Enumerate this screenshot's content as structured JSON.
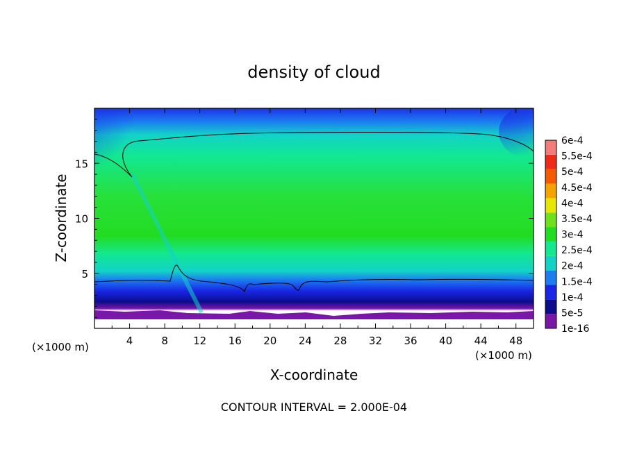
{
  "chart_data": {
    "type": "heatmap",
    "title": "density of cloud",
    "xlabel": "X-coordinate",
    "ylabel": "Z-coordinate",
    "x_unit_left": "(×1000 m)",
    "x_unit_right": "(×1000 m)",
    "footer": "CONTOUR INTERVAL = 2.000E-04",
    "xlim": [
      0,
      50
    ],
    "ylim": [
      0,
      20
    ],
    "x_ticks": [
      "4",
      "8",
      "12",
      "16",
      "20",
      "24",
      "28",
      "32",
      "36",
      "40",
      "44",
      "48"
    ],
    "y_ticks": [
      "5",
      "10",
      "15"
    ],
    "colorbar": {
      "labels": [
        "1e-16",
        "5e-5",
        "1e-4",
        "1.5e-4",
        "2e-4",
        "2.5e-4",
        "3e-4",
        "3.5e-4",
        "4e-4",
        "4.5e-4",
        "5e-4",
        "5.5e-4",
        "6e-4"
      ],
      "colors": [
        "#7a16a8",
        "#0c0c8c",
        "#1a26e6",
        "#1c7cf0",
        "#12d2c8",
        "#12e890",
        "#22dc22",
        "#6ee11c",
        "#e6e600",
        "#f5a300",
        "#f55a00",
        "#f02a18",
        "#f57a7a"
      ]
    },
    "cloud_region": {
      "cloud_base_km": 1.2,
      "contour_2e-4_bottom_km": 4.4,
      "contour_2e-4_top_km": 17.6,
      "core_value": "2.5e-4 to 3e-4",
      "core_height_range_km": [
        6,
        15
      ]
    },
    "colors": {
      "background": "#ffffff",
      "upper_fade": "#1a4df0",
      "core": "#22dc22"
    }
  }
}
